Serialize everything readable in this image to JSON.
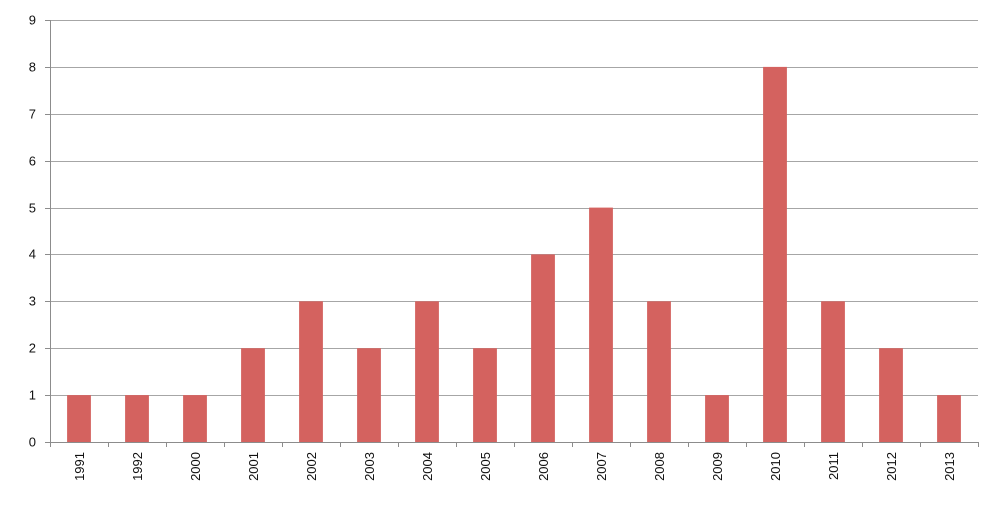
{
  "chart_data": {
    "type": "bar",
    "title": "",
    "xlabel": "",
    "ylabel": "",
    "categories": [
      "1991",
      "1992",
      "2000",
      "2001",
      "2002",
      "2003",
      "2004",
      "2005",
      "2006",
      "2007",
      "2008",
      "2009",
      "2010",
      "2011",
      "2012",
      "2013"
    ],
    "values": [
      1,
      1,
      1,
      2,
      3,
      2,
      3,
      2,
      4,
      5,
      3,
      1,
      8,
      3,
      2,
      1
    ],
    "ylim": [
      0,
      9
    ],
    "yticks": [
      0,
      1,
      2,
      3,
      4,
      5,
      6,
      7,
      8,
      9
    ],
    "grid": true,
    "legend": "none",
    "bar_color": "#d4625f"
  }
}
